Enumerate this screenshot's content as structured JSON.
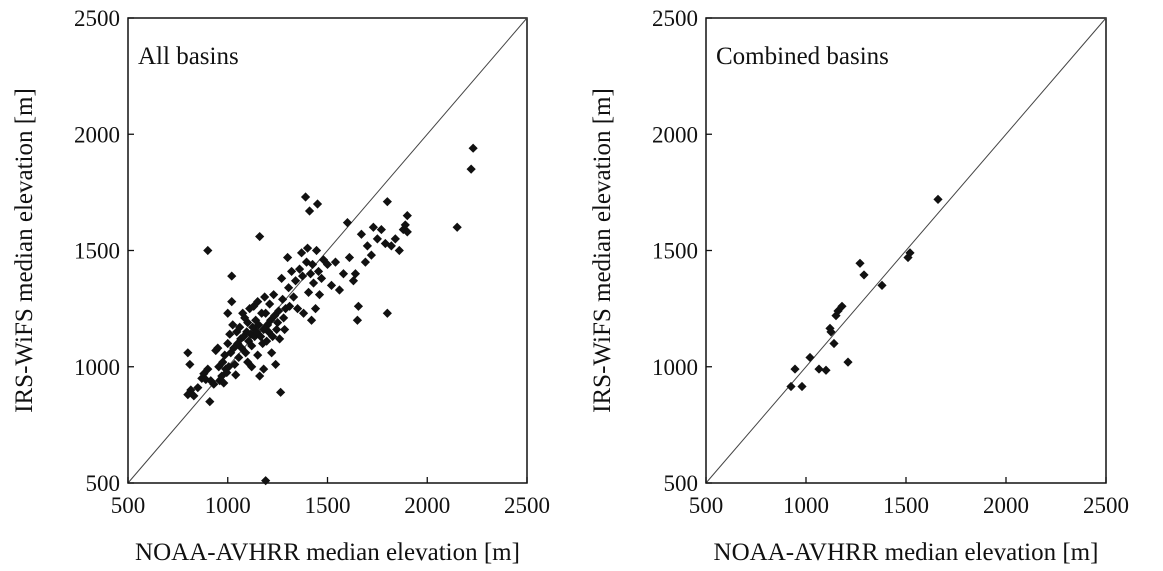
{
  "chart_data": [
    {
      "type": "scatter",
      "title": "All basins",
      "xlabel": "NOAA-AVHRR median elevation [m]",
      "ylabel": "IRS-WiFS median elevation [m]",
      "xlim": [
        500,
        2500
      ],
      "ylim": [
        500,
        2500
      ],
      "xticks": [
        500,
        1000,
        1500,
        2000,
        2500
      ],
      "yticks": [
        500,
        1000,
        1500,
        2000,
        2500
      ],
      "reference_line": "1:1",
      "grid": false,
      "points": [
        [
          800,
          1060
        ],
        [
          810,
          1010
        ],
        [
          815,
          900
        ],
        [
          800,
          880
        ],
        [
          830,
          875
        ],
        [
          850,
          910
        ],
        [
          870,
          950
        ],
        [
          880,
          970
        ],
        [
          890,
          945
        ],
        [
          900,
          1500
        ],
        [
          900,
          990
        ],
        [
          910,
          850
        ],
        [
          915,
          940
        ],
        [
          930,
          925
        ],
        [
          940,
          1070
        ],
        [
          950,
          1080
        ],
        [
          955,
          1000
        ],
        [
          960,
          940
        ],
        [
          970,
          960
        ],
        [
          975,
          1020
        ],
        [
          980,
          930
        ],
        [
          985,
          1050
        ],
        [
          990,
          990
        ],
        [
          995,
          975
        ],
        [
          1000,
          1100
        ],
        [
          1000,
          1230
        ],
        [
          1005,
          1000
        ],
        [
          1010,
          1140
        ],
        [
          1015,
          1060
        ],
        [
          1020,
          1280
        ],
        [
          1020,
          1390
        ],
        [
          1025,
          1180
        ],
        [
          1030,
          1080
        ],
        [
          1035,
          1010
        ],
        [
          1040,
          965
        ],
        [
          1045,
          1150
        ],
        [
          1050,
          1100
        ],
        [
          1055,
          1040
        ],
        [
          1060,
          1170
        ],
        [
          1065,
          1120
        ],
        [
          1070,
          1080
        ],
        [
          1075,
          1230
        ],
        [
          1080,
          1130
        ],
        [
          1085,
          1210
        ],
        [
          1090,
          1060
        ],
        [
          1095,
          1150
        ],
        [
          1100,
          1190
        ],
        [
          1100,
          1020
        ],
        [
          1105,
          1110
        ],
        [
          1110,
          1250
        ],
        [
          1115,
          1140
        ],
        [
          1120,
          1090
        ],
        [
          1120,
          1000
        ],
        [
          1125,
          1170
        ],
        [
          1130,
          1260
        ],
        [
          1135,
          1130
        ],
        [
          1140,
          1200
        ],
        [
          1145,
          1150
        ],
        [
          1150,
          1280
        ],
        [
          1150,
          1050
        ],
        [
          1155,
          1180
        ],
        [
          1160,
          1560
        ],
        [
          1160,
          960
        ],
        [
          1165,
          1130
        ],
        [
          1170,
          1230
        ],
        [
          1175,
          1100
        ],
        [
          1180,
          1160
        ],
        [
          1180,
          990
        ],
        [
          1185,
          1300
        ],
        [
          1190,
          1230
        ],
        [
          1190,
          510
        ],
        [
          1195,
          1110
        ],
        [
          1200,
          1180
        ],
        [
          1205,
          1150
        ],
        [
          1210,
          1270
        ],
        [
          1215,
          1200
        ],
        [
          1220,
          1060
        ],
        [
          1225,
          1130
        ],
        [
          1230,
          1310
        ],
        [
          1235,
          1220
        ],
        [
          1240,
          1010
        ],
        [
          1245,
          1160
        ],
        [
          1250,
          1190
        ],
        [
          1255,
          1240
        ],
        [
          1260,
          1120
        ],
        [
          1265,
          890
        ],
        [
          1270,
          1380
        ],
        [
          1275,
          1290
        ],
        [
          1280,
          1210
        ],
        [
          1285,
          1160
        ],
        [
          1290,
          1250
        ],
        [
          1300,
          1470
        ],
        [
          1305,
          1340
        ],
        [
          1310,
          1260
        ],
        [
          1320,
          1410
        ],
        [
          1330,
          1300
        ],
        [
          1340,
          1370
        ],
        [
          1350,
          1250
        ],
        [
          1360,
          1420
        ],
        [
          1370,
          1490
        ],
        [
          1375,
          1390
        ],
        [
          1380,
          1230
        ],
        [
          1390,
          1730
        ],
        [
          1395,
          1450
        ],
        [
          1400,
          1510
        ],
        [
          1405,
          1320
        ],
        [
          1410,
          1670
        ],
        [
          1415,
          1400
        ],
        [
          1420,
          1200
        ],
        [
          1425,
          1440
        ],
        [
          1430,
          1360
        ],
        [
          1440,
          1250
        ],
        [
          1445,
          1500
        ],
        [
          1450,
          1700
        ],
        [
          1455,
          1410
        ],
        [
          1460,
          1310
        ],
        [
          1470,
          1380
        ],
        [
          1480,
          1460
        ],
        [
          1500,
          1440
        ],
        [
          1520,
          1350
        ],
        [
          1540,
          1450
        ],
        [
          1560,
          1330
        ],
        [
          1580,
          1400
        ],
        [
          1600,
          1620
        ],
        [
          1610,
          1470
        ],
        [
          1630,
          1370
        ],
        [
          1640,
          1400
        ],
        [
          1650,
          1200
        ],
        [
          1655,
          1260
        ],
        [
          1670,
          1570
        ],
        [
          1690,
          1450
        ],
        [
          1700,
          1520
        ],
        [
          1720,
          1480
        ],
        [
          1730,
          1600
        ],
        [
          1750,
          1550
        ],
        [
          1770,
          1590
        ],
        [
          1790,
          1530
        ],
        [
          1800,
          1710
        ],
        [
          1800,
          1230
        ],
        [
          1820,
          1520
        ],
        [
          1840,
          1550
        ],
        [
          1860,
          1500
        ],
        [
          1880,
          1590
        ],
        [
          1890,
          1610
        ],
        [
          1900,
          1650
        ],
        [
          1900,
          1580
        ],
        [
          2150,
          1600
        ],
        [
          2220,
          1850
        ],
        [
          2230,
          1940
        ]
      ]
    },
    {
      "type": "scatter",
      "title": "Combined basins",
      "xlabel": "NOAA-AVHRR median elevation [m]",
      "ylabel": "IRS-WiFS median elevation [m]",
      "xlim": [
        500,
        2500
      ],
      "ylim": [
        500,
        2500
      ],
      "xticks": [
        500,
        1000,
        1500,
        2000,
        2500
      ],
      "yticks": [
        500,
        1000,
        1500,
        2000,
        2500
      ],
      "reference_line": "1:1",
      "grid": false,
      "points": [
        [
          925,
          915
        ],
        [
          945,
          990
        ],
        [
          980,
          915
        ],
        [
          1020,
          1040
        ],
        [
          1065,
          990
        ],
        [
          1100,
          985
        ],
        [
          1120,
          1165
        ],
        [
          1125,
          1150
        ],
        [
          1140,
          1100
        ],
        [
          1150,
          1220
        ],
        [
          1160,
          1240
        ],
        [
          1180,
          1260
        ],
        [
          1210,
          1020
        ],
        [
          1270,
          1445
        ],
        [
          1290,
          1395
        ],
        [
          1380,
          1350
        ],
        [
          1510,
          1470
        ],
        [
          1520,
          1490
        ],
        [
          1660,
          1720
        ]
      ]
    }
  ]
}
